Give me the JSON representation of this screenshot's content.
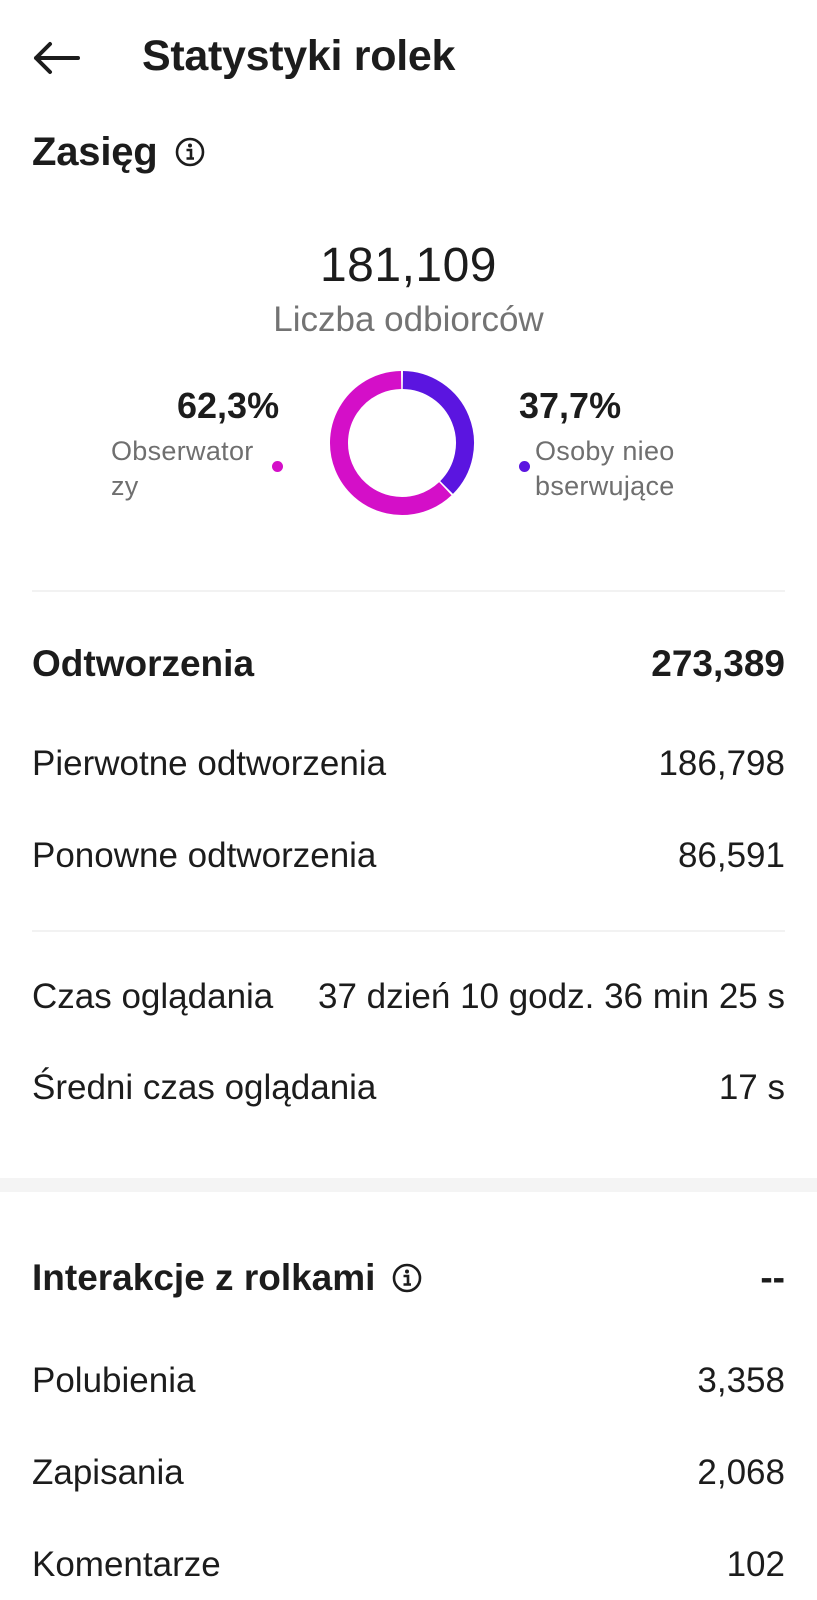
{
  "header": {
    "title": "Statystyki rolek"
  },
  "reach": {
    "title": "Zasięg",
    "total": "181,109",
    "total_label": "Liczba odbiorców",
    "followers": {
      "pct": "62,3%",
      "label_line1": "Obserwator",
      "label_line2": "zy",
      "value": 62.3,
      "color": "#d40fc8"
    },
    "non_followers": {
      "pct": "37,7%",
      "label_line1": "Osoby nieo",
      "label_line2": "bserwujące",
      "value": 37.7,
      "color": "#5b15e0"
    }
  },
  "plays": {
    "title": "Odtworzenia",
    "total": "273,389",
    "rows": [
      {
        "label": "Pierwotne odtworzenia",
        "value": "186,798"
      },
      {
        "label": "Ponowne odtworzenia",
        "value": "86,591"
      }
    ]
  },
  "watch": {
    "rows": [
      {
        "label": "Czas oglądania",
        "value": "37 dzień 10 godz. 36 min 25 s"
      },
      {
        "label": "Średni czas oglądania",
        "value": "17 s"
      }
    ]
  },
  "interactions": {
    "title": "Interakcje z rolkami",
    "total": "--",
    "rows": [
      {
        "label": "Polubienia",
        "value": "3,358"
      },
      {
        "label": "Zapisania",
        "value": "2,068"
      },
      {
        "label": "Komentarze",
        "value": "102"
      }
    ]
  }
}
